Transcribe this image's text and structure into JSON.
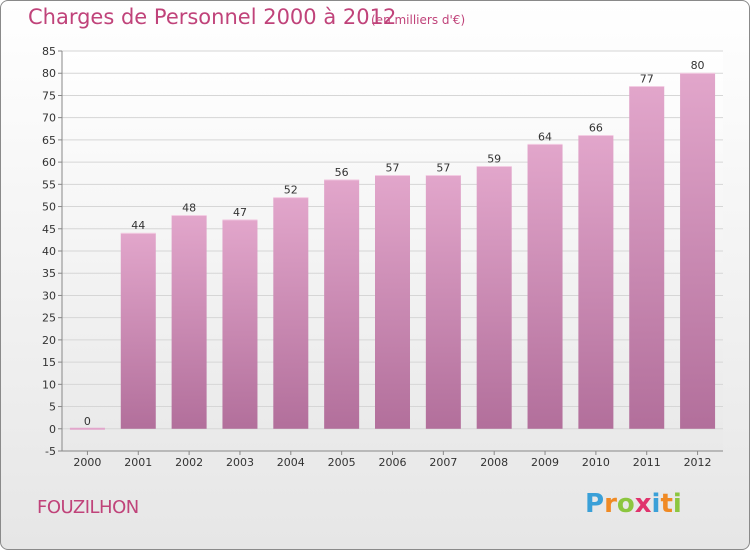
{
  "header": {
    "title": "Charges de Personnel 2000 à 2012",
    "unit_note": "(en milliers d'€)"
  },
  "footer": {
    "commune": "FOUZILHON",
    "brand": "Proxiti",
    "brand_letters": [
      {
        "ch": "P",
        "color": "#3aa0d8"
      },
      {
        "ch": "r",
        "color": "#f08a24"
      },
      {
        "ch": "o",
        "color": "#8cc63f"
      },
      {
        "ch": "x",
        "color": "#e0336c"
      },
      {
        "ch": "i",
        "color": "#3aa0d8"
      },
      {
        "ch": "t",
        "color": "#f08a24"
      },
      {
        "ch": "i",
        "color": "#8cc63f"
      }
    ]
  },
  "colors": {
    "bar_top": "#e2a6cb",
    "bar_bottom": "#b26f9b",
    "title": "#c0437a",
    "grid": "#d6d6d6",
    "axis": "#888888"
  },
  "chart_data": {
    "type": "bar",
    "title": "Charges de Personnel 2000 à 2012",
    "categories": [
      "2000",
      "2001",
      "2002",
      "2003",
      "2004",
      "2005",
      "2006",
      "2007",
      "2008",
      "2009",
      "2010",
      "2011",
      "2012"
    ],
    "values": [
      0,
      44,
      48,
      47,
      52,
      56,
      57,
      57,
      59,
      64,
      66,
      77,
      80
    ],
    "ylim": [
      -5,
      85
    ],
    "yticks": [
      -5,
      0,
      5,
      10,
      15,
      20,
      25,
      30,
      35,
      40,
      45,
      50,
      55,
      60,
      65,
      70,
      75,
      80,
      85
    ],
    "grid": true,
    "legend": "none"
  }
}
